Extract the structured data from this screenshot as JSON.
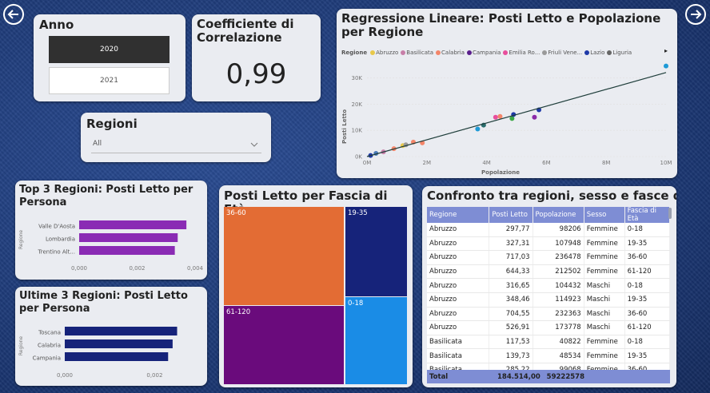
{
  "nav": {
    "back_label": "",
    "forward_label": ""
  },
  "anno": {
    "title": "Anno",
    "options": [
      "2020",
      "2021"
    ]
  },
  "correlation": {
    "title": "Coefficiente di Correlazione",
    "value": "0,99"
  },
  "regioni_slicer": {
    "title": "Regioni",
    "value": "All"
  },
  "scatter": {
    "title": "Regressione Lineare: Posti Letto e Popolazione per Regione",
    "legend_label": "Regione",
    "legend": [
      {
        "name": "Abruzzo",
        "color": "#e8c84a"
      },
      {
        "name": "Basilicata",
        "color": "#c77fa8"
      },
      {
        "name": "Calabria",
        "color": "#f4866a"
      },
      {
        "name": "Campania",
        "color": "#5a1e8c"
      },
      {
        "name": "Emilia Ro...",
        "color": "#e84e9c"
      },
      {
        "name": "Friuli Vene...",
        "color": "#9a9a9a"
      },
      {
        "name": "Lazio",
        "color": "#1f3aa8"
      },
      {
        "name": "Liguria",
        "color": "#666666"
      }
    ],
    "xlabel": "Popolazione",
    "ylabel": "Posti Letto",
    "x_ticks": [
      "0M",
      "2M",
      "4M",
      "6M",
      "8M",
      "10M"
    ],
    "y_ticks": [
      "0K",
      "10K",
      "20K",
      "30K"
    ]
  },
  "top3": {
    "title": "Top 3 Regioni: Posti Letto per Persona",
    "axis_title": "Regione",
    "x_ticks": [
      "0,000",
      "0,002",
      "0,004"
    ]
  },
  "bottom3": {
    "title": "Ultime 3 Regioni: Posti Letto per Persona",
    "axis_title": "Regione",
    "x_ticks": [
      "0,000",
      "0,002"
    ]
  },
  "treemap": {
    "title": "Posti Letto per Fascia di Età",
    "labels": [
      "36-60",
      "19-35",
      "61-120",
      "0-18"
    ]
  },
  "table": {
    "title": "Confronto tra regioni, sesso e fasce d'età",
    "columns": [
      "Regione",
      "Posti Letto",
      "Popolazione",
      "Sesso",
      "Fascia di Età"
    ],
    "rows": [
      [
        "Abruzzo",
        "297,77",
        "98206",
        "Femmine",
        "0-18"
      ],
      [
        "Abruzzo",
        "327,31",
        "107948",
        "Femmine",
        "19-35"
      ],
      [
        "Abruzzo",
        "717,03",
        "236478",
        "Femmine",
        "36-60"
      ],
      [
        "Abruzzo",
        "644,33",
        "212502",
        "Femmine",
        "61-120"
      ],
      [
        "Abruzzo",
        "316,65",
        "104432",
        "Maschi",
        "0-18"
      ],
      [
        "Abruzzo",
        "348,46",
        "114923",
        "Maschi",
        "19-35"
      ],
      [
        "Abruzzo",
        "704,55",
        "232363",
        "Maschi",
        "36-60"
      ],
      [
        "Abruzzo",
        "526,91",
        "173778",
        "Maschi",
        "61-120"
      ],
      [
        "Basilicata",
        "117,53",
        "40822",
        "Femmine",
        "0-18"
      ],
      [
        "Basilicata",
        "139,73",
        "48534",
        "Femmine",
        "19-35"
      ],
      [
        "Basilicata",
        "285,22",
        "99068",
        "Femmine",
        "36-60"
      ]
    ],
    "total": [
      "Total",
      "184.514,00",
      "59222578",
      "",
      ""
    ]
  },
  "chart_data": [
    {
      "type": "scatter",
      "title": "Regressione Lineare: Posti Letto e Popolazione per Regione",
      "xlabel": "Popolazione",
      "ylabel": "Posti Letto",
      "xlim": [
        0,
        10000000
      ],
      "ylim": [
        0,
        35000
      ],
      "points": [
        {
          "x": 120000,
          "y": 400,
          "color": "#1f3aa8"
        },
        {
          "x": 300000,
          "y": 1200,
          "color": "#4a7ab8"
        },
        {
          "x": 550000,
          "y": 1800,
          "color": "#c77fa8"
        },
        {
          "x": 900000,
          "y": 3000,
          "color": "#f4866a"
        },
        {
          "x": 1200000,
          "y": 4200,
          "color": "#e8c84a"
        },
        {
          "x": 1300000,
          "y": 4500,
          "color": "#9a9a9a"
        },
        {
          "x": 1550000,
          "y": 5500,
          "color": "#f4866a"
        },
        {
          "x": 1850000,
          "y": 5200,
          "color": "#f4866a"
        },
        {
          "x": 3700000,
          "y": 10500,
          "color": "#1e9ad6"
        },
        {
          "x": 3900000,
          "y": 12000,
          "color": "#2a6e6e"
        },
        {
          "x": 4300000,
          "y": 15000,
          "color": "#e84e9c"
        },
        {
          "x": 4450000,
          "y": 15300,
          "color": "#f4866a"
        },
        {
          "x": 4850000,
          "y": 14500,
          "color": "#3aa845"
        },
        {
          "x": 4900000,
          "y": 16000,
          "color": "#1f3aa8"
        },
        {
          "x": 5600000,
          "y": 15000,
          "color": "#8a2aa8"
        },
        {
          "x": 5750000,
          "y": 17800,
          "color": "#1f3aa8"
        },
        {
          "x": 10000000,
          "y": 34500,
          "color": "#1e9ad6"
        }
      ],
      "trendline": {
        "x": [
          0,
          10000000
        ],
        "y": [
          0,
          32000
        ]
      }
    },
    {
      "type": "bar",
      "orientation": "horizontal",
      "title": "Top 3 Regioni: Posti Letto per Persona",
      "categories": [
        "Valle D'Aosta",
        "Lombardia",
        "Trentino Alt..."
      ],
      "values": [
        0.0037,
        0.0034,
        0.0033
      ],
      "xlim": [
        0,
        0.004
      ],
      "color": "#8a2bb4"
    },
    {
      "type": "bar",
      "orientation": "horizontal",
      "title": "Ultime 3 Regioni: Posti Letto per Persona",
      "categories": [
        "Toscana",
        "Calabria",
        "Campania"
      ],
      "values": [
        0.0025,
        0.0024,
        0.0023
      ],
      "xlim": [
        0,
        0.0029
      ],
      "color": "#16237a"
    }
  ]
}
